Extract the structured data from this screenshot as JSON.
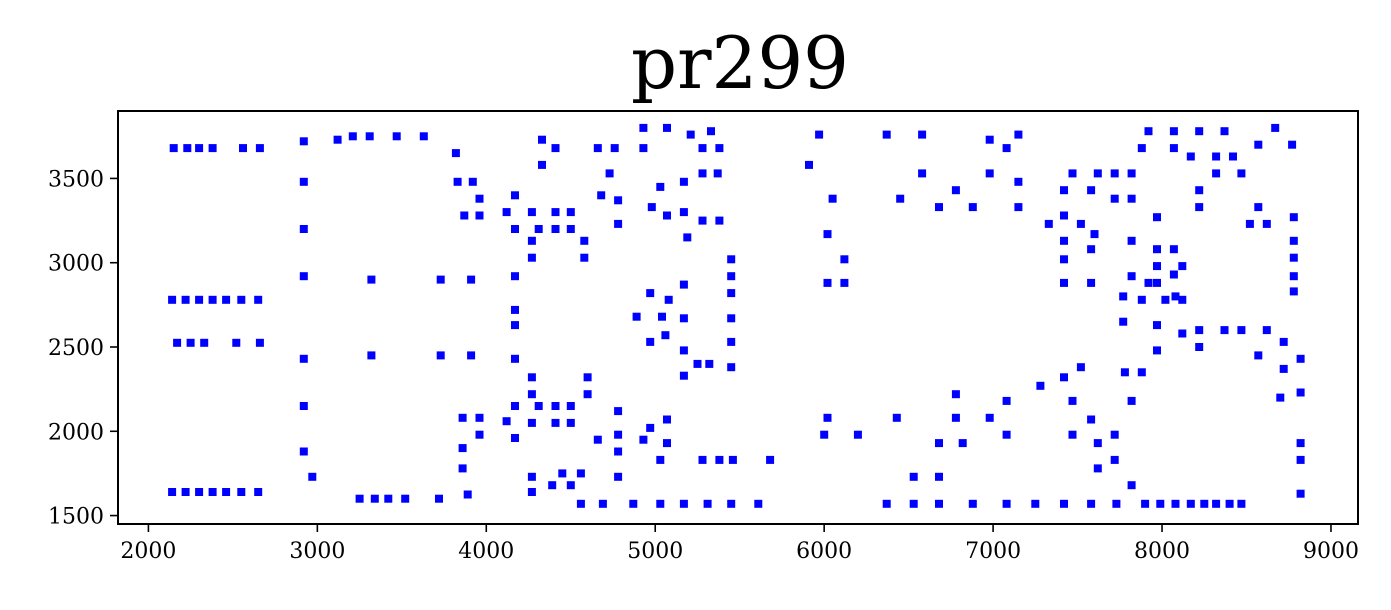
{
  "chart_data": {
    "type": "scatter",
    "title": "pr299",
    "xlabel": "",
    "ylabel": "",
    "xlim": [
      1820,
      9160
    ],
    "ylim": [
      1450,
      3900
    ],
    "xticks": [
      2000,
      3000,
      4000,
      5000,
      6000,
      7000,
      8000,
      9000
    ],
    "yticks": [
      1500,
      2000,
      2500,
      3000,
      3500
    ],
    "grid": false,
    "legend": "none",
    "marker": "square",
    "point_color": "#0000ff",
    "series": [
      {
        "points": [
          [
            2150,
            3680
          ],
          [
            2230,
            3680
          ],
          [
            2300,
            3680
          ],
          [
            2380,
            3680
          ],
          [
            2560,
            3680
          ],
          [
            2660,
            3680
          ],
          [
            2140,
            2780
          ],
          [
            2220,
            2780
          ],
          [
            2300,
            2780
          ],
          [
            2380,
            2780
          ],
          [
            2460,
            2780
          ],
          [
            2550,
            2780
          ],
          [
            2650,
            2780
          ],
          [
            2170,
            2525
          ],
          [
            2250,
            2525
          ],
          [
            2330,
            2525
          ],
          [
            2520,
            2525
          ],
          [
            2660,
            2525
          ],
          [
            2140,
            1640
          ],
          [
            2220,
            1640
          ],
          [
            2300,
            1640
          ],
          [
            2380,
            1640
          ],
          [
            2460,
            1640
          ],
          [
            2550,
            1640
          ],
          [
            2650,
            1640
          ],
          [
            2920,
            3720
          ],
          [
            2920,
            3480
          ],
          [
            2920,
            3200
          ],
          [
            2920,
            2920
          ],
          [
            2920,
            2430
          ],
          [
            2920,
            2150
          ],
          [
            2920,
            1880
          ],
          [
            2970,
            1730
          ],
          [
            3120,
            3730
          ],
          [
            3210,
            3750
          ],
          [
            3310,
            3750
          ],
          [
            3470,
            3750
          ],
          [
            3630,
            3750
          ],
          [
            3320,
            2900
          ],
          [
            3730,
            2900
          ],
          [
            3910,
            2900
          ],
          [
            3320,
            2450
          ],
          [
            3730,
            2450
          ],
          [
            3910,
            2450
          ],
          [
            3250,
            1600
          ],
          [
            3340,
            1600
          ],
          [
            3420,
            1600
          ],
          [
            3520,
            1600
          ],
          [
            3720,
            1600
          ],
          [
            3890,
            1625
          ],
          [
            3820,
            3650
          ],
          [
            3830,
            3480
          ],
          [
            3920,
            3480
          ],
          [
            3960,
            3380
          ],
          [
            3870,
            3280
          ],
          [
            3960,
            3280
          ],
          [
            3860,
            2080
          ],
          [
            3960,
            2080
          ],
          [
            3960,
            1980
          ],
          [
            3860,
            1900
          ],
          [
            3860,
            1780
          ],
          [
            4120,
            3300
          ],
          [
            4170,
            3400
          ],
          [
            4170,
            3200
          ],
          [
            4170,
            2920
          ],
          [
            4170,
            2720
          ],
          [
            4170,
            2630
          ],
          [
            4170,
            2430
          ],
          [
            4120,
            2060
          ],
          [
            4170,
            2150
          ],
          [
            4170,
            1960
          ],
          [
            4270,
            3300
          ],
          [
            4270,
            3130
          ],
          [
            4270,
            3030
          ],
          [
            4310,
            3200
          ],
          [
            4330,
            3730
          ],
          [
            4330,
            3580
          ],
          [
            4410,
            3680
          ],
          [
            4410,
            3300
          ],
          [
            4410,
            3200
          ],
          [
            4500,
            3300
          ],
          [
            4500,
            3200
          ],
          [
            4580,
            3130
          ],
          [
            4580,
            3030
          ],
          [
            4270,
            2320
          ],
          [
            4270,
            2220
          ],
          [
            4270,
            2050
          ],
          [
            4310,
            2150
          ],
          [
            4410,
            2150
          ],
          [
            4410,
            2050
          ],
          [
            4500,
            2150
          ],
          [
            4500,
            2050
          ],
          [
            4600,
            2320
          ],
          [
            4600,
            2220
          ],
          [
            4270,
            1730
          ],
          [
            4270,
            1640
          ],
          [
            4390,
            1680
          ],
          [
            4450,
            1750
          ],
          [
            4500,
            1680
          ],
          [
            4560,
            1750
          ],
          [
            4560,
            1570
          ],
          [
            4660,
            3680
          ],
          [
            4680,
            3400
          ],
          [
            4730,
            3530
          ],
          [
            4760,
            3680
          ],
          [
            4780,
            3370
          ],
          [
            4780,
            3230
          ],
          [
            4660,
            1950
          ],
          [
            4780,
            2120
          ],
          [
            4780,
            1980
          ],
          [
            4780,
            1880
          ],
          [
            4780,
            1730
          ],
          [
            4690,
            1570
          ],
          [
            4870,
            1570
          ],
          [
            5030,
            1570
          ],
          [
            5170,
            1570
          ],
          [
            5310,
            1570
          ],
          [
            5450,
            1570
          ],
          [
            5610,
            1570
          ],
          [
            4890,
            2680
          ],
          [
            4970,
            2820
          ],
          [
            5040,
            2680
          ],
          [
            5080,
            2780
          ],
          [
            4970,
            2530
          ],
          [
            5060,
            2570
          ],
          [
            4930,
            3800
          ],
          [
            4930,
            3680
          ],
          [
            4980,
            3330
          ],
          [
            5030,
            3450
          ],
          [
            5070,
            3800
          ],
          [
            5070,
            3280
          ],
          [
            5170,
            3480
          ],
          [
            5170,
            3300
          ],
          [
            5190,
            3150
          ],
          [
            4930,
            1950
          ],
          [
            4970,
            2020
          ],
          [
            5030,
            1830
          ],
          [
            5070,
            2070
          ],
          [
            5070,
            1930
          ],
          [
            5170,
            2870
          ],
          [
            5170,
            2670
          ],
          [
            5170,
            2480
          ],
          [
            5170,
            2330
          ],
          [
            5210,
            3760
          ],
          [
            5250,
            2400
          ],
          [
            5280,
            3680
          ],
          [
            5280,
            3530
          ],
          [
            5280,
            3250
          ],
          [
            5320,
            2400
          ],
          [
            5330,
            3780
          ],
          [
            5370,
            3530
          ],
          [
            5380,
            3680
          ],
          [
            5380,
            3250
          ],
          [
            5450,
            3020
          ],
          [
            5450,
            2920
          ],
          [
            5450,
            2820
          ],
          [
            5450,
            2670
          ],
          [
            5450,
            2530
          ],
          [
            5450,
            2380
          ],
          [
            5280,
            1830
          ],
          [
            5380,
            1830
          ],
          [
            5460,
            1830
          ],
          [
            5680,
            1830
          ],
          [
            5910,
            3580
          ],
          [
            5970,
            3760
          ],
          [
            6020,
            3170
          ],
          [
            6050,
            3380
          ],
          [
            6020,
            2880
          ],
          [
            6120,
            3020
          ],
          [
            6120,
            2880
          ],
          [
            6000,
            1980
          ],
          [
            6020,
            2080
          ],
          [
            6200,
            1980
          ],
          [
            6370,
            3760
          ],
          [
            6450,
            3380
          ],
          [
            6580,
            3760
          ],
          [
            6580,
            3530
          ],
          [
            6680,
            3330
          ],
          [
            6780,
            3430
          ],
          [
            6880,
            3330
          ],
          [
            6980,
            3730
          ],
          [
            6980,
            3530
          ],
          [
            7080,
            3680
          ],
          [
            7150,
            3760
          ],
          [
            7150,
            3480
          ],
          [
            7150,
            3330
          ],
          [
            6430,
            2080
          ],
          [
            6530,
            1730
          ],
          [
            6680,
            1730
          ],
          [
            6680,
            1930
          ],
          [
            6780,
            2220
          ],
          [
            6780,
            2080
          ],
          [
            6820,
            1930
          ],
          [
            6980,
            2080
          ],
          [
            7080,
            2180
          ],
          [
            7080,
            1980
          ],
          [
            6370,
            1570
          ],
          [
            6530,
            1570
          ],
          [
            6680,
            1570
          ],
          [
            6880,
            1570
          ],
          [
            7080,
            1570
          ],
          [
            7250,
            1570
          ],
          [
            7420,
            1570
          ],
          [
            7580,
            1570
          ],
          [
            7730,
            1570
          ],
          [
            7900,
            1570
          ],
          [
            7280,
            2270
          ],
          [
            7330,
            3230
          ],
          [
            7420,
            3430
          ],
          [
            7420,
            3280
          ],
          [
            7420,
            3130
          ],
          [
            7420,
            3020
          ],
          [
            7420,
            2880
          ],
          [
            7420,
            2320
          ],
          [
            7470,
            3530
          ],
          [
            7470,
            2180
          ],
          [
            7470,
            1980
          ],
          [
            7520,
            3230
          ],
          [
            7520,
            2380
          ],
          [
            7580,
            3430
          ],
          [
            7580,
            3080
          ],
          [
            7580,
            2880
          ],
          [
            7600,
            3170
          ],
          [
            7580,
            2070
          ],
          [
            7620,
            3530
          ],
          [
            7620,
            1930
          ],
          [
            7620,
            1780
          ],
          [
            7720,
            1980
          ],
          [
            7720,
            1830
          ],
          [
            7720,
            3530
          ],
          [
            7720,
            3380
          ],
          [
            7770,
            2800
          ],
          [
            7770,
            2650
          ],
          [
            7780,
            2350
          ],
          [
            7820,
            3530
          ],
          [
            7820,
            3380
          ],
          [
            7820,
            3130
          ],
          [
            7820,
            2920
          ],
          [
            7820,
            2180
          ],
          [
            7820,
            1680
          ],
          [
            7880,
            3680
          ],
          [
            7880,
            2780
          ],
          [
            7880,
            2350
          ],
          [
            7920,
            3780
          ],
          [
            7920,
            2880
          ],
          [
            7970,
            3270
          ],
          [
            7970,
            3080
          ],
          [
            7970,
            2980
          ],
          [
            7970,
            2880
          ],
          [
            7970,
            2630
          ],
          [
            7970,
            2480
          ],
          [
            8020,
            2780
          ],
          [
            8070,
            3780
          ],
          [
            8070,
            3680
          ],
          [
            8070,
            3080
          ],
          [
            8070,
            2930
          ],
          [
            8080,
            2800
          ],
          [
            8120,
            2980
          ],
          [
            8120,
            2780
          ],
          [
            8120,
            2580
          ],
          [
            8170,
            3630
          ],
          [
            8220,
            3780
          ],
          [
            8220,
            3430
          ],
          [
            8220,
            3330
          ],
          [
            8220,
            2600
          ],
          [
            8220,
            2500
          ],
          [
            8320,
            3630
          ],
          [
            8320,
            3530
          ],
          [
            8370,
            3780
          ],
          [
            8370,
            2600
          ],
          [
            8420,
            3630
          ],
          [
            8470,
            3530
          ],
          [
            8470,
            2600
          ],
          [
            8520,
            3230
          ],
          [
            8570,
            3700
          ],
          [
            8570,
            3330
          ],
          [
            8570,
            2450
          ],
          [
            8620,
            3230
          ],
          [
            8620,
            2600
          ],
          [
            8670,
            3800
          ],
          [
            8720,
            2530
          ],
          [
            8720,
            2370
          ],
          [
            8700,
            2200
          ],
          [
            8770,
            3700
          ],
          [
            8780,
            3270
          ],
          [
            8780,
            3130
          ],
          [
            8780,
            3030
          ],
          [
            8780,
            2920
          ],
          [
            8780,
            2830
          ],
          [
            8820,
            2430
          ],
          [
            8820,
            2230
          ],
          [
            8820,
            1930
          ],
          [
            8820,
            1830
          ],
          [
            8820,
            1630
          ],
          [
            7990,
            1570
          ],
          [
            8080,
            1570
          ],
          [
            8170,
            1570
          ],
          [
            8250,
            1570
          ],
          [
            8320,
            1570
          ],
          [
            8400,
            1570
          ],
          [
            8470,
            1570
          ]
        ]
      }
    ]
  }
}
